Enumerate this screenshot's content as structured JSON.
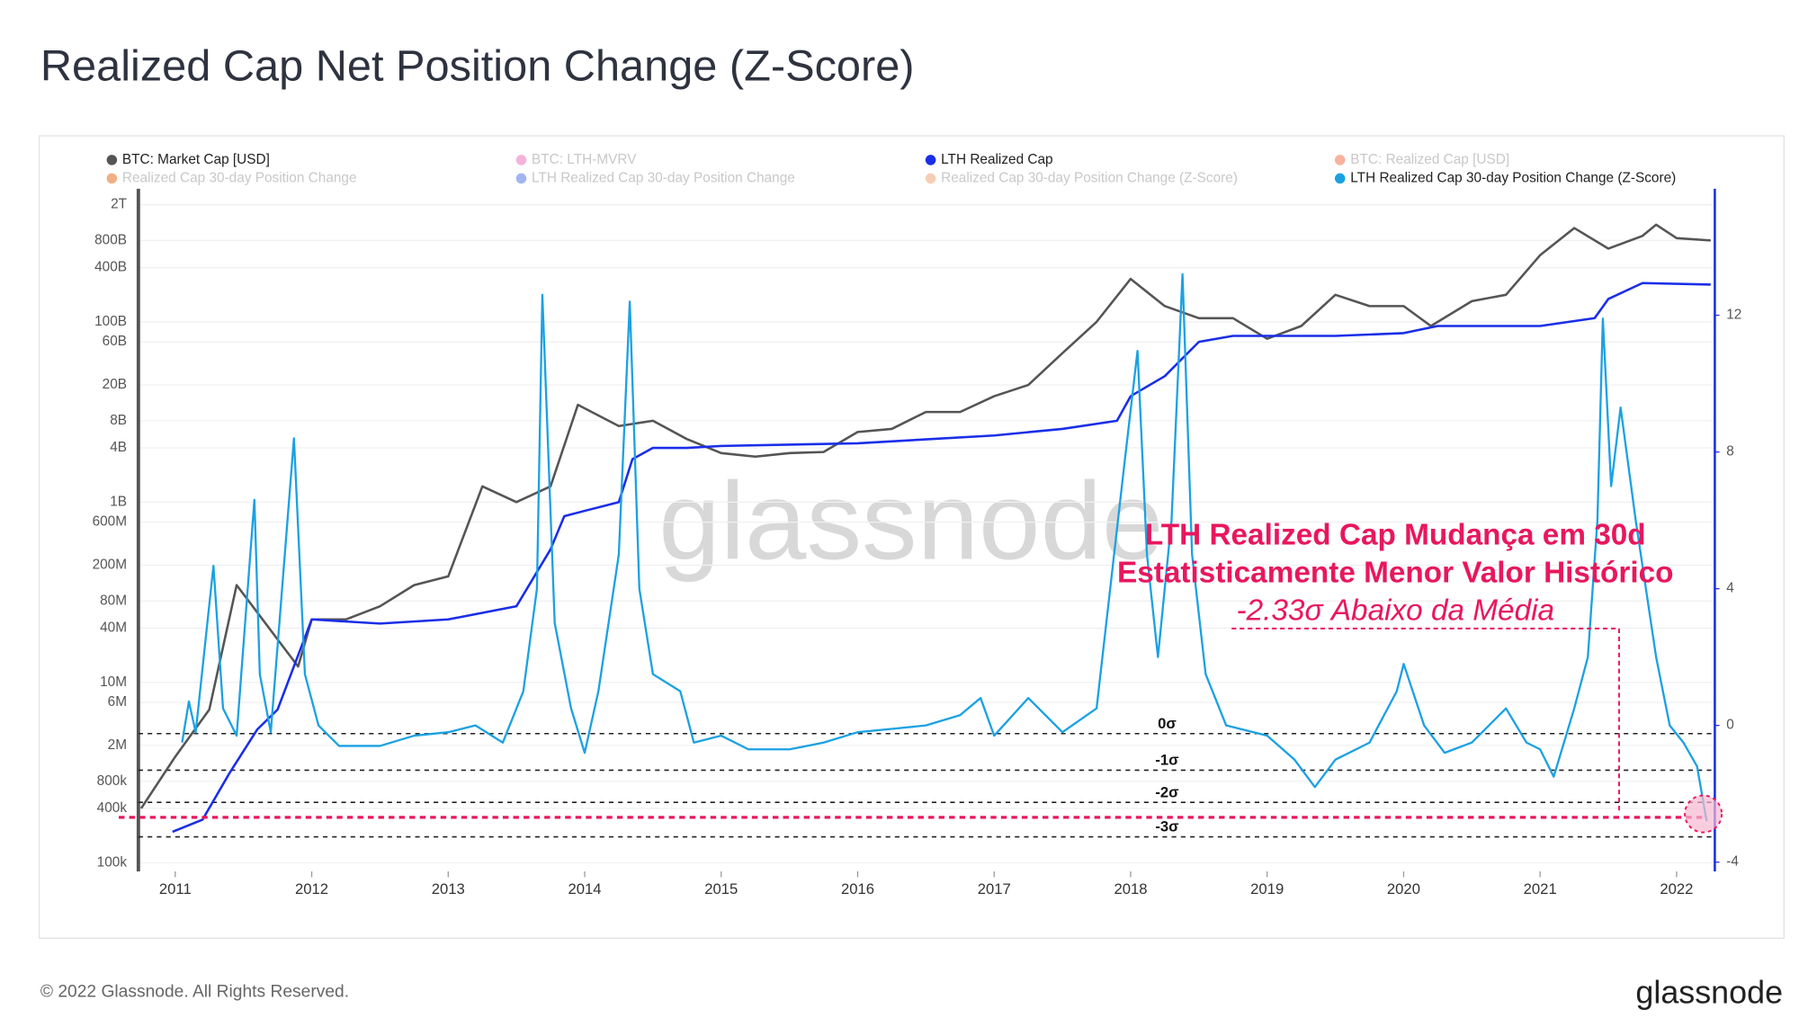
{
  "chart_data": {
    "type": "line",
    "title": "Realized Cap Net Position Change (Z-Score)",
    "ylog": true,
    "grid": true,
    "xlim": [
      2010.73,
      2022.28
    ],
    "xticks": [
      2011,
      2012,
      2013,
      2014,
      2015,
      2016,
      2017,
      2018,
      2019,
      2020,
      2021,
      2022
    ],
    "ylim": [
      80000,
      3000000000000
    ],
    "yticks": [
      {
        "value": 100000,
        "label": "100k"
      },
      {
        "value": 400000,
        "label": "400k"
      },
      {
        "value": 800000,
        "label": "800k"
      },
      {
        "value": 2000000,
        "label": "2M"
      },
      {
        "value": 6000000,
        "label": "6M"
      },
      {
        "value": 10000000,
        "label": "10M"
      },
      {
        "value": 40000000,
        "label": "40M"
      },
      {
        "value": 80000000,
        "label": "80M"
      },
      {
        "value": 200000000,
        "label": "200M"
      },
      {
        "value": 600000000,
        "label": "600M"
      },
      {
        "value": 1000000000,
        "label": "1B"
      },
      {
        "value": 4000000000,
        "label": "4B"
      },
      {
        "value": 8000000000,
        "label": "8B"
      },
      {
        "value": 20000000000,
        "label": "20B"
      },
      {
        "value": 60000000000,
        "label": "60B"
      },
      {
        "value": 100000000000,
        "label": "100B"
      },
      {
        "value": 400000000000,
        "label": "400B"
      },
      {
        "value": 800000000000,
        "label": "800B"
      },
      {
        "value": 2000000000000,
        "label": "2T"
      }
    ],
    "y2lim": [
      -4.27,
      15.7
    ],
    "y2ticks": [
      -4,
      0,
      4,
      8,
      12
    ],
    "series": [
      {
        "name": "BTC: Market Cap [USD]",
        "color": "#555555",
        "visible": true,
        "axis": "y",
        "x": [
          2010.75,
          2011.0,
          2011.25,
          2011.45,
          2011.6,
          2011.75,
          2011.9,
          2012.0,
          2012.25,
          2012.5,
          2012.75,
          2013.0,
          2013.25,
          2013.5,
          2013.75,
          2013.95,
          2014.25,
          2014.5,
          2014.75,
          2015.0,
          2015.25,
          2015.5,
          2015.75,
          2016.0,
          2016.25,
          2016.5,
          2016.75,
          2017.0,
          2017.25,
          2017.5,
          2017.75,
          2018.0,
          2018.25,
          2018.5,
          2018.75,
          2019.0,
          2019.25,
          2019.5,
          2019.75,
          2020.0,
          2020.2,
          2020.5,
          2020.75,
          2021.0,
          2021.25,
          2021.5,
          2021.75,
          2021.85,
          2022.0,
          2022.25
        ],
        "values": [
          400000,
          1500000,
          5000000,
          120000000,
          60000000,
          30000000,
          15000000,
          50000000,
          50000000,
          70000000,
          120000000,
          150000000,
          1500000000,
          1000000000,
          1500000000,
          12000000000,
          7000000000,
          8000000000,
          5000000000,
          3500000000,
          3200000000,
          3500000000,
          3600000000,
          6000000000,
          6500000000,
          10000000000,
          10000000000,
          15000000000,
          20000000000,
          45000000000,
          100000000000,
          300000000000,
          150000000000,
          110000000000,
          110000000000,
          65000000000,
          90000000000,
          200000000000,
          150000000000,
          150000000000,
          90000000000,
          170000000000,
          200000000000,
          550000000000,
          1100000000000,
          650000000000,
          900000000000,
          1200000000000,
          850000000000,
          800000000000
        ]
      },
      {
        "name": "BTC: LTH-MVRV",
        "color": "#f4a3d4",
        "visible": false
      },
      {
        "name": "LTH Realized Cap",
        "color": "#1a2ee8",
        "visible": true,
        "axis": "y",
        "x": [
          2010.98,
          2011.2,
          2011.4,
          2011.6,
          2011.75,
          2011.9,
          2012.0,
          2012.5,
          2013.0,
          2013.5,
          2013.75,
          2013.85,
          2014.0,
          2014.25,
          2014.35,
          2014.5,
          2014.75,
          2015.0,
          2016.0,
          2017.0,
          2017.5,
          2017.9,
          2018.0,
          2018.25,
          2018.5,
          2018.75,
          2019.0,
          2019.5,
          2020.0,
          2020.25,
          2021.0,
          2021.4,
          2021.5,
          2021.75,
          2022.25
        ],
        "values": [
          220000,
          300000,
          1000000,
          3000000,
          5000000,
          20000000,
          50000000,
          45000000,
          50000000,
          70000000,
          300000000,
          700000000,
          800000000,
          1000000000,
          3000000000,
          4000000000,
          4000000000,
          4200000000,
          4500000000,
          5500000000,
          6500000000,
          8000000000,
          15000000000,
          25000000000,
          60000000000,
          70000000000,
          70000000000,
          70000000000,
          75000000000,
          90000000000,
          90000000000,
          110000000000,
          180000000000,
          270000000000,
          260000000000
        ]
      },
      {
        "name": "BTC: Realized Cap [USD]",
        "color": "#f8a58a",
        "visible": false
      },
      {
        "name": "Realized Cap 30-day Position Change",
        "color": "#f0a070",
        "visible": false
      },
      {
        "name": "LTH Realized Cap 30-day Position Change",
        "color": "#8fa8f0",
        "visible": false
      },
      {
        "name": "Realized Cap 30-day Position Change (Z-Score)",
        "color": "#f6c6a8",
        "visible": false
      },
      {
        "name": "LTH Realized Cap 30-day Position Change (Z-Score)",
        "color": "#1ba1e2",
        "visible": true,
        "axis": "y2",
        "x": [
          2011.05,
          2011.1,
          2011.15,
          2011.28,
          2011.35,
          2011.45,
          2011.58,
          2011.62,
          2011.7,
          2011.87,
          2011.95,
          2012.05,
          2012.2,
          2012.5,
          2012.75,
          2013.0,
          2013.2,
          2013.4,
          2013.55,
          2013.65,
          2013.69,
          2013.78,
          2013.9,
          2014.0,
          2014.1,
          2014.25,
          2014.33,
          2014.4,
          2014.5,
          2014.7,
          2014.8,
          2015.0,
          2015.2,
          2015.5,
          2015.75,
          2016.0,
          2016.25,
          2016.5,
          2016.75,
          2016.9,
          2017.0,
          2017.25,
          2017.5,
          2017.75,
          2017.95,
          2018.05,
          2018.12,
          2018.2,
          2018.3,
          2018.38,
          2018.45,
          2018.55,
          2018.7,
          2018.9,
          2019.0,
          2019.2,
          2019.35,
          2019.5,
          2019.75,
          2019.95,
          2020.0,
          2020.15,
          2020.3,
          2020.5,
          2020.75,
          2020.9,
          2021.0,
          2021.1,
          2021.25,
          2021.35,
          2021.42,
          2021.46,
          2021.52,
          2021.59,
          2021.7,
          2021.85,
          2021.95,
          2022.05,
          2022.15,
          2022.22
        ],
        "values": [
          -0.5,
          0.7,
          -0.2,
          4.67,
          0.5,
          -0.3,
          6.6,
          1.5,
          -0.2,
          8.4,
          1.5,
          0.0,
          -0.6,
          -0.6,
          -0.3,
          -0.2,
          0.0,
          -0.5,
          1.0,
          4.0,
          12.6,
          3.0,
          0.5,
          -0.8,
          1.0,
          5.0,
          12.4,
          4.0,
          1.5,
          1.0,
          -0.5,
          -0.3,
          -0.7,
          -0.7,
          -0.5,
          -0.2,
          -0.1,
          0.0,
          0.3,
          0.8,
          -0.3,
          0.8,
          -0.2,
          0.5,
          7.5,
          10.96,
          5.0,
          2.0,
          6.0,
          13.2,
          5.0,
          1.5,
          0.0,
          -0.2,
          -0.3,
          -1.0,
          -1.8,
          -1.0,
          -0.5,
          1.0,
          1.8,
          0.0,
          -0.8,
          -0.5,
          0.5,
          -0.5,
          -0.7,
          -1.5,
          0.5,
          2.0,
          6.0,
          11.9,
          7.0,
          9.3,
          6.0,
          2.0,
          0.0,
          -0.5,
          -1.2,
          -2.8
        ]
      }
    ],
    "reference_lines": [
      {
        "label": "0σ",
        "value": -0.24
      },
      {
        "label": "-1σ",
        "value": -1.31
      },
      {
        "label": "-2σ",
        "value": -2.25
      },
      {
        "label": "-3σ",
        "value": -3.26
      }
    ],
    "highlight_line": {
      "value": -2.69,
      "color": "#e8175d"
    },
    "annotation": {
      "line1": "LTH Realized Cap Mudança em 30d",
      "line2": "Estatisticamente Menor Valor Histórico",
      "line3": "-2.33σ Abaixo da Média"
    },
    "watermark": "glassnode",
    "footer": "© 2022 Glassnode. All Rights Reserved.",
    "logo": "glassnode"
  }
}
